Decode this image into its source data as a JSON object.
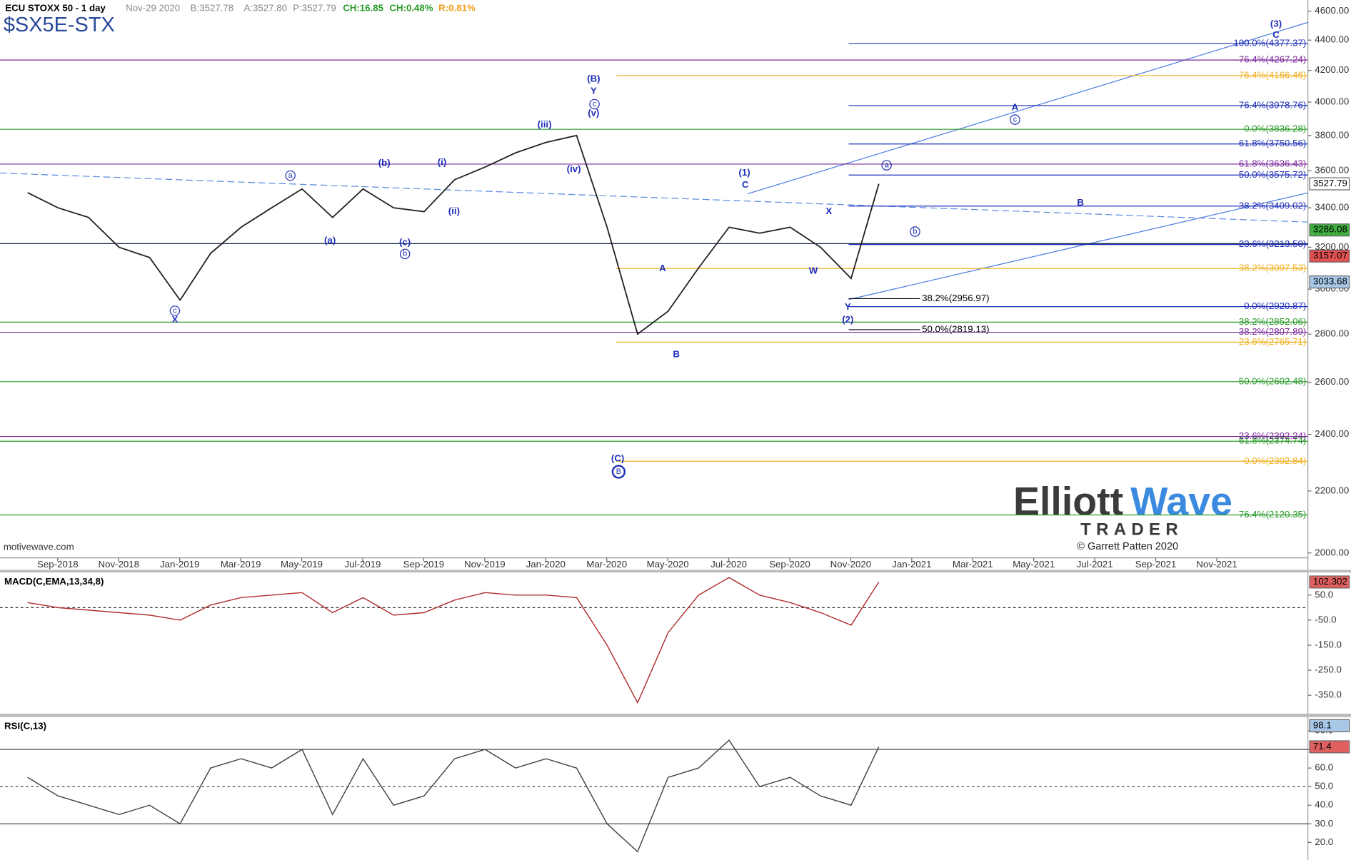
{
  "header": {
    "title": "ECU STOXX 50 - 1 day",
    "date": "Nov-29 2020",
    "bid": "B:3527.78",
    "ask": "A:3527.80",
    "price": "P:3527.79",
    "change": "CH:16.85",
    "change_pct": "CH:0.48%",
    "range": "R:0.81%",
    "symbol": "$SX5E-STX"
  },
  "footer": {
    "site": "motivewave.com",
    "logo_a": "Elliott",
    "logo_b": "Wave",
    "logo_c": "TRADER",
    "copyright": "© Garrett Patten 2020"
  },
  "chart_data": {
    "type": "line",
    "log_scale": true,
    "x": [
      "Aug-2018",
      "Sep-2018",
      "Oct-2018",
      "Nov-2018",
      "Dec-2018",
      "Jan-2019",
      "Feb-2019",
      "Mar-2019",
      "Apr-2019",
      "May-2019",
      "Jun-2019",
      "Jul-2019",
      "Aug-2019",
      "Sep-2019",
      "Oct-2019",
      "Nov-2019",
      "Dec-2019",
      "Jan-2020",
      "Feb-2020",
      "Mar-2020",
      "Apr-2020",
      "May-2020",
      "Jun-2020",
      "Jul-2020",
      "Aug-2020",
      "Sep-2020",
      "Oct-2020",
      "Nov-2020",
      "Nov-29 2020"
    ],
    "series": [
      {
        "name": "Price",
        "color": "#222222",
        "values": [
          3480,
          3400,
          3350,
          3200,
          3150,
          2950,
          3170,
          3300,
          3400,
          3500,
          3350,
          3500,
          3400,
          3380,
          3550,
          3620,
          3700,
          3760,
          3800,
          3300,
          2800,
          2900,
          3100,
          3300,
          3270,
          3300,
          3200,
          3050,
          3527.79
        ]
      }
    ],
    "ylim": [
      1985,
      4680
    ],
    "yticks": [
      {
        "value": 4600,
        "label": "4600.00"
      },
      {
        "value": 4400,
        "label": "4400.00"
      },
      {
        "value": 4200,
        "label": "4200.00"
      },
      {
        "value": 4000,
        "label": "4000.00"
      },
      {
        "value": 3800,
        "label": "3800.00"
      },
      {
        "value": 3600,
        "label": "3600.00"
      },
      {
        "value": 3400,
        "label": "3400.00"
      },
      {
        "value": 3200,
        "label": "3200.00"
      },
      {
        "value": 3000,
        "label": "3000.00"
      },
      {
        "value": 2800,
        "label": "2800.00"
      },
      {
        "value": 2600,
        "label": "2600.00"
      },
      {
        "value": 2400,
        "label": "2400.00"
      },
      {
        "value": 2200,
        "label": "2200.00"
      },
      {
        "value": 2000,
        "label": "2000.00"
      }
    ],
    "xticks": [
      "Sep-2018",
      "Nov-2018",
      "Jan-2019",
      "Mar-2019",
      "May-2019",
      "Jul-2019",
      "Sep-2019",
      "Nov-2019",
      "Jan-2020",
      "Mar-2020",
      "May-2020",
      "Jul-2020",
      "Sep-2020",
      "Nov-2020",
      "Jan-2021",
      "Mar-2021",
      "May-2021",
      "Jul-2021",
      "Sep-2021",
      "Nov-2021"
    ],
    "levels": [
      {
        "label": "100.0%(4377.37)",
        "value": 4377.37,
        "color": "#1f2fb8"
      },
      {
        "label": "76.4%(4267.24)",
        "value": 4267.24,
        "color": "#7a2a9a"
      },
      {
        "label": "76.4%(4166.46)",
        "value": 4166.46,
        "color": "#f0b020"
      },
      {
        "label": "76.4%(3978.76)",
        "value": 3978.76,
        "color": "#1f2fb8"
      },
      {
        "label": "0.0%(3836.28)",
        "value": 3836.28,
        "color": "#2a9a2a"
      },
      {
        "label": "61.8%(3750.56)",
        "value": 3750.56,
        "color": "#1f2fb8"
      },
      {
        "label": "61.8%(3636.43)",
        "value": 3636.43,
        "color": "#7a2a9a"
      },
      {
        "label": "50.0%(3575.72)",
        "value": 3575.72,
        "color": "#1f2fb8"
      },
      {
        "label": "38.2%(3409.02)",
        "value": 3409.02,
        "color": "#1f2fb8"
      },
      {
        "label": "23.6%(3213.50)",
        "value": 3213.5,
        "color": "#1f2fb8"
      },
      {
        "label": "38.2%(3097.53)",
        "value": 3097.53,
        "color": "#f0b020"
      },
      {
        "label": "38.2%(2956.97)",
        "value": 2956.97,
        "color": "#000000"
      },
      {
        "label": "0.0%(2920.87)",
        "value": 2920.87,
        "color": "#1f2fb8"
      },
      {
        "label": "38.2%(2852.06)",
        "value": 2852.06,
        "color": "#2a9a2a"
      },
      {
        "label": "50.0%(2819.13)",
        "value": 2819.13,
        "color": "#000000"
      },
      {
        "label": "38.2%(2807.89)",
        "value": 2807.89,
        "color": "#7a2a9a"
      },
      {
        "label": "23.6%(2765.71)",
        "value": 2765.71,
        "color": "#f0b020"
      },
      {
        "label": "50.0%(2602.48)",
        "value": 2602.48,
        "color": "#2a9a2a"
      },
      {
        "label": "23.6%(2392.24)",
        "value": 2392.24,
        "color": "#7a2a9a"
      },
      {
        "label": "61.8%(2374.74)",
        "value": 2374.74,
        "color": "#2a9a2a"
      },
      {
        "label": "0.0%(2302.84)",
        "value": 2302.84,
        "color": "#f0b020"
      },
      {
        "label": "76.4%(2120.35)",
        "value": 2120.35,
        "color": "#2a9a2a"
      }
    ],
    "price_boxes": [
      {
        "value": 3527.79,
        "color": "#ffffff"
      },
      {
        "value": 3286.08,
        "color": "#3fae3f"
      },
      {
        "value": 3157.07,
        "color": "#e05050"
      },
      {
        "value": 3033.68,
        "color": "#a8c8e8"
      }
    ],
    "waves": [
      {
        "text": "(B)"
      },
      {
        "text": "Y"
      },
      {
        "text": "c",
        "circled": true
      },
      {
        "text": "(v)"
      },
      {
        "text": "(iii)"
      },
      {
        "text": "(iv)"
      },
      {
        "text": "a",
        "circled": true
      },
      {
        "text": "(b)"
      },
      {
        "text": "(i)"
      },
      {
        "text": "(ii)"
      },
      {
        "text": "(a)"
      },
      {
        "text": "(c)"
      },
      {
        "text": "b",
        "circled": true
      },
      {
        "text": "c",
        "circled": true
      },
      {
        "text": "X"
      },
      {
        "text": "(C)"
      },
      {
        "text": "B",
        "circled": true
      },
      {
        "text": "A"
      },
      {
        "text": "B"
      },
      {
        "text": "(1)"
      },
      {
        "text": "C"
      },
      {
        "text": "X"
      },
      {
        "text": "W"
      },
      {
        "text": "Y"
      },
      {
        "text": "(2)"
      },
      {
        "text": "(3)"
      },
      {
        "text": "C"
      },
      {
        "text": "A"
      },
      {
        "text": "c",
        "circled": true
      },
      {
        "text": "a",
        "circled": true
      },
      {
        "text": "B"
      },
      {
        "text": "b",
        "circled": true
      }
    ],
    "macd": {
      "title": "MACD(C,EMA,13,34,8)",
      "color": "#b03030",
      "values": [
        20,
        0,
        -10,
        -20,
        -30,
        -50,
        10,
        40,
        50,
        60,
        -20,
        40,
        -30,
        -20,
        30,
        60,
        50,
        50,
        40,
        -150,
        -380,
        -100,
        50,
        120,
        50,
        20,
        -20,
        -70,
        102.302
      ],
      "ylim": [
        -420,
        130
      ],
      "yticks": [
        {
          "value": 50,
          "label": "50.0"
        },
        {
          "value": -50,
          "label": "-50.0"
        },
        {
          "value": -150,
          "label": "-150.0"
        },
        {
          "value": -250,
          "label": "-250.0"
        },
        {
          "value": -350,
          "label": "-350.0"
        }
      ]
    },
    "rsi": {
      "title": "RSI(C,13)",
      "color": "#444444",
      "values": [
        55,
        45,
        40,
        35,
        40,
        30,
        60,
        65,
        60,
        70,
        35,
        65,
        40,
        45,
        65,
        70,
        60,
        65,
        60,
        30,
        15,
        55,
        60,
        75,
        50,
        55,
        45,
        40,
        71.4
      ],
      "ylim": [
        11,
        86
      ],
      "yticks": [
        {
          "value": 80,
          "label": "80.0"
        },
        {
          "value": 70,
          "label": "70.0"
        },
        {
          "value": 60,
          "label": "60.0"
        },
        {
          "value": 50,
          "label": "50.0"
        },
        {
          "value": 40,
          "label": "40.0"
        },
        {
          "value": 30,
          "label": "30.0"
        },
        {
          "value": 20,
          "label": "20.0"
        }
      ],
      "box_high": 98.1
    }
  }
}
